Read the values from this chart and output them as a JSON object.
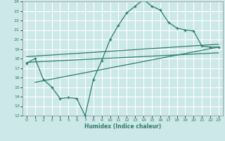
{
  "title": "",
  "xlabel": "Humidex (Indice chaleur)",
  "ylabel": "",
  "bg_color": "#cce8e8",
  "grid_color": "#ffffff",
  "line_color": "#2e7d6e",
  "xlim": [
    -0.5,
    23.5
  ],
  "ylim": [
    12,
    24
  ],
  "xticks": [
    0,
    1,
    2,
    3,
    4,
    5,
    6,
    7,
    8,
    9,
    10,
    11,
    12,
    13,
    14,
    15,
    16,
    17,
    18,
    19,
    20,
    21,
    22,
    23
  ],
  "yticks": [
    12,
    13,
    14,
    15,
    16,
    17,
    18,
    19,
    20,
    21,
    22,
    23,
    24
  ],
  "line1_x": [
    0,
    1,
    2,
    3,
    4,
    5,
    6,
    7,
    8,
    9,
    10,
    11,
    12,
    13,
    14,
    15,
    16,
    17,
    18,
    19,
    20,
    21,
    22,
    23
  ],
  "line1_y": [
    17.5,
    18.0,
    15.8,
    15.0,
    13.8,
    13.9,
    13.8,
    12.0,
    15.8,
    17.8,
    20.0,
    21.5,
    22.8,
    23.5,
    24.2,
    23.5,
    23.1,
    21.8,
    21.2,
    21.0,
    20.9,
    19.3,
    19.2,
    19.2
  ],
  "line2_x": [
    0,
    23
  ],
  "line2_y": [
    18.2,
    19.5
  ],
  "line3_x": [
    0,
    23
  ],
  "line3_y": [
    17.6,
    18.6
  ],
  "line4_x": [
    1,
    23
  ],
  "line4_y": [
    15.5,
    19.2
  ]
}
